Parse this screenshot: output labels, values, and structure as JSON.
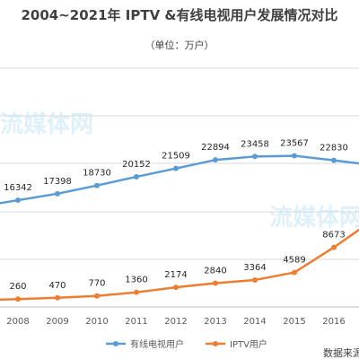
{
  "chart_data": {
    "type": "line",
    "title": "2004~2021年 IPTV &有线电视用户发展情况对比",
    "subtitle": "（单位：万户）",
    "categories": [
      "2008",
      "2009",
      "2010",
      "2011",
      "2012",
      "2013",
      "2014",
      "2015",
      "2016"
    ],
    "series": [
      {
        "name": "有线电视用户",
        "color": "#5b9bd5",
        "values": [
          16342,
          17398,
          18730,
          20152,
          21509,
          22894,
          23458,
          23567,
          22830
        ]
      },
      {
        "name": "IPTV用户",
        "color": "#ed7d31",
        "values": [
          260,
          470,
          770,
          1360,
          2174,
          2840,
          3364,
          4589,
          8673
        ]
      }
    ],
    "grid": true,
    "legend_position": "bottom"
  },
  "source_note": "数据来源",
  "watermark_text": "流媒体网"
}
